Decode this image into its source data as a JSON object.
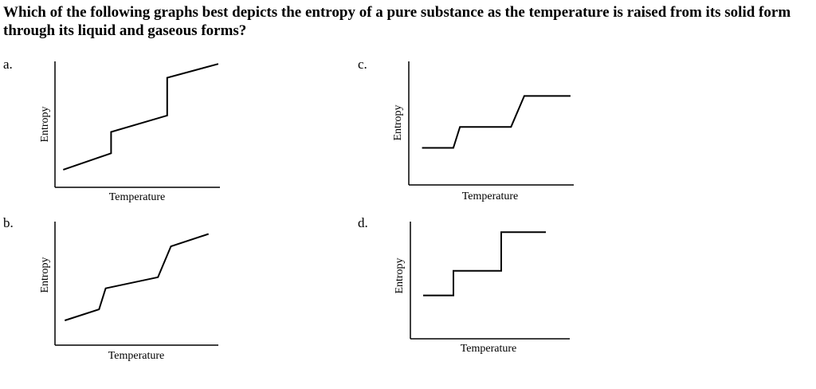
{
  "question": "Which of the following graphs best depicts the entropy of a pure substance as the temperature is raised from its solid form through its liquid and gaseous forms?",
  "chart_data": [
    {
      "type": "line",
      "option": "a.",
      "xlabel": "Temperature",
      "ylabel": "Entropy",
      "xlim": [
        0,
        100
      ],
      "ylim": [
        0,
        100
      ],
      "series": [
        {
          "x": [
            5,
            34,
            34,
            68,
            68,
            99
          ],
          "y": [
            14,
            27,
            44,
            57,
            87,
            98
          ]
        }
      ]
    },
    {
      "type": "line",
      "option": "b.",
      "xlabel": "Temperature",
      "ylabel": "Entropy",
      "xlim": [
        0,
        100
      ],
      "ylim": [
        0,
        100
      ],
      "series": [
        {
          "x": [
            6,
            27,
            31,
            63,
            71,
            94
          ],
          "y": [
            20,
            29,
            46,
            55,
            80,
            90
          ]
        }
      ]
    },
    {
      "type": "line",
      "option": "c.",
      "xlabel": "Temperature",
      "ylabel": "Entropy",
      "xlim": [
        0,
        100
      ],
      "ylim": [
        0,
        100
      ],
      "series": [
        {
          "x": [
            8,
            27,
            31,
            62,
            70,
            98
          ],
          "y": [
            30,
            30,
            47,
            47,
            72,
            72
          ]
        }
      ]
    },
    {
      "type": "line",
      "option": "d.",
      "xlabel": "Temperature",
      "ylabel": "Entropy",
      "xlim": [
        0,
        100
      ],
      "ylim": [
        0,
        100
      ],
      "series": [
        {
          "x": [
            8,
            27,
            27,
            57,
            57,
            85
          ],
          "y": [
            37,
            37,
            58,
            58,
            91,
            91
          ]
        }
      ]
    }
  ]
}
